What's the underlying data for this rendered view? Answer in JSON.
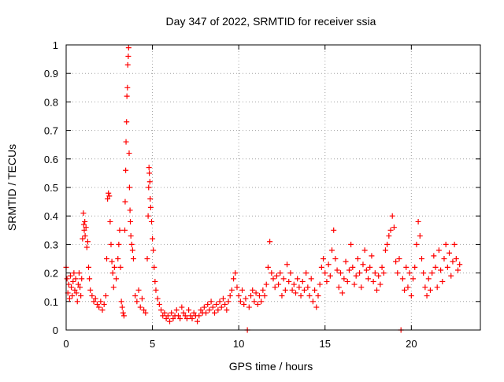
{
  "chart_data": {
    "type": "scatter",
    "title": "Day 347 of 2022, SRMTID for receiver ssia",
    "xlabel": "GPS time / hours",
    "ylabel": "SRMTID / TECUs",
    "xlim": [
      0,
      24
    ],
    "ylim": [
      0,
      1
    ],
    "xticks": [
      0,
      5,
      10,
      15,
      20
    ],
    "xtick_labels": [
      "0",
      "5",
      "10",
      "15",
      "20"
    ],
    "yticks": [
      0,
      0.1,
      0.2,
      0.3,
      0.4,
      0.5,
      0.6,
      0.7,
      0.8,
      0.9,
      1
    ],
    "ytick_labels": [
      "0",
      "0.1",
      "0.2",
      "0.3",
      "0.4",
      "0.5",
      "0.6",
      "0.7",
      "0.8",
      "0.9",
      "1"
    ],
    "grid": true,
    "marker": "+",
    "series": [
      {
        "name": "SRMTID",
        "color": "#ff0000",
        "points": [
          [
            0.0,
            0.22
          ],
          [
            0.05,
            0.18
          ],
          [
            0.1,
            0.13
          ],
          [
            0.15,
            0.16
          ],
          [
            0.2,
            0.11
          ],
          [
            0.25,
            0.19
          ],
          [
            0.3,
            0.15
          ],
          [
            0.35,
            0.12
          ],
          [
            0.4,
            0.17
          ],
          [
            0.45,
            0.2
          ],
          [
            0.5,
            0.14
          ],
          [
            0.55,
            0.18
          ],
          [
            0.6,
            0.13
          ],
          [
            0.65,
            0.1
          ],
          [
            0.7,
            0.16
          ],
          [
            0.75,
            0.2
          ],
          [
            0.8,
            0.15
          ],
          [
            0.85,
            0.12
          ],
          [
            0.9,
            0.18
          ],
          [
            0.95,
            0.32
          ],
          [
            1.0,
            0.41
          ],
          [
            1.02,
            0.37
          ],
          [
            1.05,
            0.35
          ],
          [
            1.08,
            0.38
          ],
          [
            1.1,
            0.33
          ],
          [
            1.15,
            0.36
          ],
          [
            1.2,
            0.29
          ],
          [
            1.25,
            0.31
          ],
          [
            1.3,
            0.22
          ],
          [
            1.35,
            0.18
          ],
          [
            1.4,
            0.14
          ],
          [
            1.5,
            0.12
          ],
          [
            1.6,
            0.1
          ],
          [
            1.7,
            0.11
          ],
          [
            1.8,
            0.09
          ],
          [
            1.9,
            0.08
          ],
          [
            2.0,
            0.1
          ],
          [
            2.1,
            0.07
          ],
          [
            2.2,
            0.09
          ],
          [
            2.3,
            0.12
          ],
          [
            2.35,
            0.25
          ],
          [
            2.4,
            0.46
          ],
          [
            2.45,
            0.48
          ],
          [
            2.5,
            0.47
          ],
          [
            2.55,
            0.38
          ],
          [
            2.6,
            0.3
          ],
          [
            2.65,
            0.24
          ],
          [
            2.7,
            0.2
          ],
          [
            2.75,
            0.15
          ],
          [
            2.8,
            0.22
          ],
          [
            2.9,
            0.18
          ],
          [
            3.0,
            0.25
          ],
          [
            3.05,
            0.3
          ],
          [
            3.1,
            0.35
          ],
          [
            3.15,
            0.22
          ],
          [
            3.2,
            0.1
          ],
          [
            3.25,
            0.08
          ],
          [
            3.3,
            0.06
          ],
          [
            3.35,
            0.05
          ],
          [
            3.4,
            0.35
          ],
          [
            3.42,
            0.45
          ],
          [
            3.45,
            0.56
          ],
          [
            3.47,
            0.66
          ],
          [
            3.5,
            0.73
          ],
          [
            3.52,
            0.82
          ],
          [
            3.55,
            0.85
          ],
          [
            3.57,
            0.93
          ],
          [
            3.6,
            0.96
          ],
          [
            3.62,
            0.99
          ],
          [
            3.65,
            0.62
          ],
          [
            3.67,
            0.5
          ],
          [
            3.7,
            0.42
          ],
          [
            3.72,
            0.38
          ],
          [
            3.75,
            0.33
          ],
          [
            3.8,
            0.3
          ],
          [
            3.85,
            0.28
          ],
          [
            3.9,
            0.25
          ],
          [
            4.0,
            0.12
          ],
          [
            4.1,
            0.1
          ],
          [
            4.2,
            0.14
          ],
          [
            4.3,
            0.08
          ],
          [
            4.4,
            0.11
          ],
          [
            4.5,
            0.07
          ],
          [
            4.6,
            0.06
          ],
          [
            4.7,
            0.25
          ],
          [
            4.75,
            0.4
          ],
          [
            4.78,
            0.5
          ],
          [
            4.8,
            0.57
          ],
          [
            4.82,
            0.55
          ],
          [
            4.85,
            0.52
          ],
          [
            4.87,
            0.46
          ],
          [
            4.9,
            0.43
          ],
          [
            4.95,
            0.38
          ],
          [
            5.0,
            0.32
          ],
          [
            5.05,
            0.28
          ],
          [
            5.1,
            0.22
          ],
          [
            5.15,
            0.17
          ],
          [
            5.2,
            0.14
          ],
          [
            5.3,
            0.11
          ],
          [
            5.4,
            0.09
          ],
          [
            5.5,
            0.07
          ],
          [
            5.6,
            0.05
          ],
          [
            5.7,
            0.06
          ],
          [
            5.8,
            0.04
          ],
          [
            5.9,
            0.05
          ],
          [
            6.0,
            0.03
          ],
          [
            6.1,
            0.06
          ],
          [
            6.2,
            0.04
          ],
          [
            6.3,
            0.05
          ],
          [
            6.4,
            0.07
          ],
          [
            6.5,
            0.05
          ],
          [
            6.6,
            0.04
          ],
          [
            6.7,
            0.08
          ],
          [
            6.8,
            0.06
          ],
          [
            6.9,
            0.05
          ],
          [
            7.0,
            0.04
          ],
          [
            7.1,
            0.07
          ],
          [
            7.2,
            0.05
          ],
          [
            7.3,
            0.04
          ],
          [
            7.4,
            0.06
          ],
          [
            7.5,
            0.05
          ],
          [
            7.6,
            0.03
          ],
          [
            7.7,
            0.05
          ],
          [
            7.8,
            0.07
          ],
          [
            7.9,
            0.06
          ],
          [
            8.0,
            0.08
          ],
          [
            8.1,
            0.06
          ],
          [
            8.2,
            0.09
          ],
          [
            8.3,
            0.07
          ],
          [
            8.4,
            0.1
          ],
          [
            8.5,
            0.08
          ],
          [
            8.6,
            0.06
          ],
          [
            8.7,
            0.09
          ],
          [
            8.8,
            0.07
          ],
          [
            8.9,
            0.1
          ],
          [
            9.0,
            0.08
          ],
          [
            9.1,
            0.11
          ],
          [
            9.2,
            0.09
          ],
          [
            9.3,
            0.07
          ],
          [
            9.4,
            0.1
          ],
          [
            9.5,
            0.12
          ],
          [
            9.6,
            0.14
          ],
          [
            9.7,
            0.18
          ],
          [
            9.8,
            0.2
          ],
          [
            9.9,
            0.15
          ],
          [
            10.0,
            0.12
          ],
          [
            10.1,
            0.1
          ],
          [
            10.2,
            0.14
          ],
          [
            10.3,
            0.09
          ],
          [
            10.4,
            0.11
          ],
          [
            10.5,
            0.0
          ],
          [
            10.6,
            0.08
          ],
          [
            10.7,
            0.12
          ],
          [
            10.8,
            0.14
          ],
          [
            10.9,
            0.1
          ],
          [
            11.0,
            0.13
          ],
          [
            11.1,
            0.09
          ],
          [
            11.2,
            0.12
          ],
          [
            11.3,
            0.1
          ],
          [
            11.4,
            0.14
          ],
          [
            11.5,
            0.12
          ],
          [
            11.6,
            0.16
          ],
          [
            11.7,
            0.22
          ],
          [
            11.8,
            0.31
          ],
          [
            11.9,
            0.2
          ],
          [
            12.0,
            0.18
          ],
          [
            12.1,
            0.15
          ],
          [
            12.2,
            0.19
          ],
          [
            12.3,
            0.16
          ],
          [
            12.4,
            0.2
          ],
          [
            12.5,
            0.12
          ],
          [
            12.6,
            0.18
          ],
          [
            12.7,
            0.14
          ],
          [
            12.8,
            0.23
          ],
          [
            12.9,
            0.17
          ],
          [
            13.0,
            0.2
          ],
          [
            13.1,
            0.14
          ],
          [
            13.2,
            0.16
          ],
          [
            13.3,
            0.13
          ],
          [
            13.4,
            0.18
          ],
          [
            13.5,
            0.15
          ],
          [
            13.6,
            0.12
          ],
          [
            13.7,
            0.17
          ],
          [
            13.8,
            0.14
          ],
          [
            13.9,
            0.2
          ],
          [
            14.0,
            0.15
          ],
          [
            14.1,
            0.12
          ],
          [
            14.2,
            0.18
          ],
          [
            14.3,
            0.1
          ],
          [
            14.4,
            0.14
          ],
          [
            14.5,
            0.08
          ],
          [
            14.6,
            0.12
          ],
          [
            14.7,
            0.16
          ],
          [
            14.8,
            0.22
          ],
          [
            14.9,
            0.25
          ],
          [
            15.0,
            0.2
          ],
          [
            15.1,
            0.17
          ],
          [
            15.2,
            0.23
          ],
          [
            15.3,
            0.19
          ],
          [
            15.4,
            0.28
          ],
          [
            15.5,
            0.35
          ],
          [
            15.6,
            0.25
          ],
          [
            15.7,
            0.21
          ],
          [
            15.8,
            0.15
          ],
          [
            15.9,
            0.2
          ],
          [
            16.0,
            0.13
          ],
          [
            16.1,
            0.18
          ],
          [
            16.2,
            0.24
          ],
          [
            16.3,
            0.17
          ],
          [
            16.4,
            0.21
          ],
          [
            16.5,
            0.3
          ],
          [
            16.6,
            0.22
          ],
          [
            16.7,
            0.16
          ],
          [
            16.8,
            0.19
          ],
          [
            16.9,
            0.25
          ],
          [
            17.0,
            0.2
          ],
          [
            17.1,
            0.15
          ],
          [
            17.2,
            0.23
          ],
          [
            17.3,
            0.28
          ],
          [
            17.4,
            0.21
          ],
          [
            17.5,
            0.18
          ],
          [
            17.6,
            0.22
          ],
          [
            17.7,
            0.26
          ],
          [
            17.8,
            0.17
          ],
          [
            17.9,
            0.2
          ],
          [
            18.0,
            0.14
          ],
          [
            18.1,
            0.19
          ],
          [
            18.2,
            0.16
          ],
          [
            18.3,
            0.22
          ],
          [
            18.4,
            0.2
          ],
          [
            18.5,
            0.28
          ],
          [
            18.6,
            0.3
          ],
          [
            18.7,
            0.33
          ],
          [
            18.8,
            0.35
          ],
          [
            18.9,
            0.4
          ],
          [
            19.0,
            0.36
          ],
          [
            19.1,
            0.24
          ],
          [
            19.2,
            0.2
          ],
          [
            19.3,
            0.25
          ],
          [
            19.4,
            0.0
          ],
          [
            19.5,
            0.18
          ],
          [
            19.6,
            0.14
          ],
          [
            19.7,
            0.22
          ],
          [
            19.8,
            0.15
          ],
          [
            19.9,
            0.2
          ],
          [
            20.0,
            0.12
          ],
          [
            20.1,
            0.18
          ],
          [
            20.2,
            0.22
          ],
          [
            20.3,
            0.3
          ],
          [
            20.4,
            0.38
          ],
          [
            20.5,
            0.33
          ],
          [
            20.6,
            0.25
          ],
          [
            20.7,
            0.2
          ],
          [
            20.8,
            0.15
          ],
          [
            20.9,
            0.12
          ],
          [
            21.0,
            0.18
          ],
          [
            21.1,
            0.14
          ],
          [
            21.2,
            0.2
          ],
          [
            21.3,
            0.26
          ],
          [
            21.4,
            0.22
          ],
          [
            21.5,
            0.15
          ],
          [
            21.6,
            0.28
          ],
          [
            21.7,
            0.21
          ],
          [
            21.8,
            0.17
          ],
          [
            21.9,
            0.25
          ],
          [
            22.0,
            0.3
          ],
          [
            22.1,
            0.22
          ],
          [
            22.2,
            0.27
          ],
          [
            22.3,
            0.19
          ],
          [
            22.4,
            0.24
          ],
          [
            22.5,
            0.3
          ],
          [
            22.6,
            0.25
          ],
          [
            22.7,
            0.21
          ],
          [
            22.8,
            0.23
          ]
        ]
      }
    ]
  }
}
